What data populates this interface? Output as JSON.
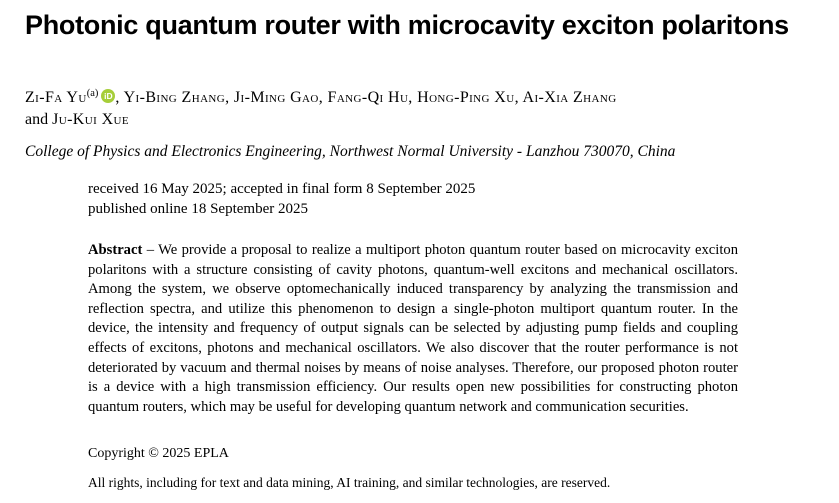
{
  "title": "Photonic quantum router with microcavity exciton polaritons",
  "authors": {
    "first_author": "Zi-Fa Yu",
    "first_author_marker": "(a)",
    "orcid_label": "iD",
    "rest_line1": ", Yi-Bing Zhang, Ji-Ming Gao, Fang-Qi Hu, Hong-Ping Xu, Ai-Xia Zhang",
    "line2_prefix": "and ",
    "last_author": "Ju-Kui Xue"
  },
  "affiliation": "College of Physics and Electronics Engineering, Northwest Normal University - Lanzhou 730070, China",
  "dates": {
    "received": "received 16 May 2025; accepted in final form 8 September 2025",
    "published": "published online 18 September 2025"
  },
  "abstract": {
    "label": "Abstract",
    "separator": " – ",
    "text": "We provide a proposal to realize a multiport photon quantum router based on microcavity exciton polaritons with a structure consisting of cavity photons, quantum-well excitons and mechanical oscillators. Among the system, we observe optomechanically induced transparency by analyzing the transmission and reflection spectra, and utilize this phenomenon to design a single-photon multiport quantum router. In the device, the intensity and frequency of output signals can be selected by adjusting pump fields and coupling effects of excitons, photons and mechanical oscillators. We also discover that the router performance is not deteriorated by vacuum and thermal noises by means of noise analyses. Therefore, our proposed photon router is a device with a high transmission efficiency. Our results open new possibilities for constructing photon quantum routers, which may be useful for developing quantum network and communication securities."
  },
  "footer": {
    "copyright": "Copyright © 2025 EPLA",
    "rights": "All rights, including for text and data mining, AI training, and similar technologies, are reserved."
  },
  "colors": {
    "orcid_green": "#A6CE39",
    "text": "#000000",
    "background": "#FFFFFF"
  }
}
